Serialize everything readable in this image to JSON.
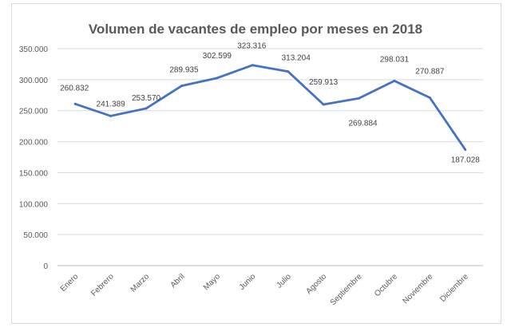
{
  "chart_data": {
    "type": "line",
    "title": "Volumen de vacantes de empleo por meses en 2018",
    "xlabel": "",
    "ylabel": "",
    "categories": [
      "Enero",
      "Febrero",
      "Marzo",
      "Abril",
      "Mayo",
      "Junio",
      "Julio",
      "Agosto",
      "Septiembre",
      "Octubre",
      "Noviembre",
      "Diciembre"
    ],
    "values": [
      260832,
      241389,
      253570,
      289935,
      302599,
      323316,
      313204,
      259913,
      269884,
      298031,
      270887,
      187028
    ],
    "value_labels": [
      "260.832",
      "241.389",
      "253.570",
      "289.935",
      "302.599",
      "323.316",
      "313.204",
      "259.913",
      "269.884",
      "298.031",
      "270.887",
      "187.028"
    ],
    "ylim": [
      0,
      350000
    ],
    "yticks": [
      0,
      50000,
      100000,
      150000,
      200000,
      250000,
      300000,
      350000
    ],
    "ytick_labels": [
      "0",
      "50.000",
      "100.000",
      "150.000",
      "200.000",
      "250.000",
      "300.000",
      "350.000"
    ],
    "grid": true,
    "legend": "none",
    "line_color": "#4472c4"
  }
}
